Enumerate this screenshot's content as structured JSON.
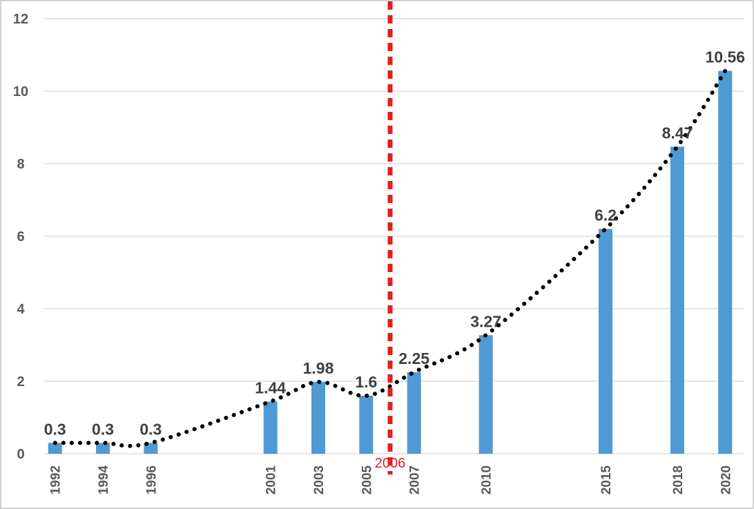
{
  "chart_data": {
    "type": "bar",
    "title": "",
    "xlabel": "",
    "ylabel": "",
    "ylim": [
      0,
      12
    ],
    "yticks": [
      0,
      2,
      4,
      6,
      8,
      10,
      12
    ],
    "grid": true,
    "legend": "none",
    "x": [
      1992,
      1994,
      1996,
      2001,
      2003,
      2005,
      2007,
      2010,
      2015,
      2018,
      2020
    ],
    "values": [
      0.3,
      0.3,
      0.3,
      1.44,
      1.98,
      1.6,
      2.25,
      3.27,
      6.2,
      8.47,
      10.56
    ],
    "data_labels": [
      "0.3",
      "0.3",
      "0.3",
      "1.44",
      "1.98",
      "1.6",
      "2.25",
      "3.27",
      "6.2",
      "8.47",
      "10.56"
    ],
    "trendline": "smoothed dotted line through bar values",
    "vertical_marker": {
      "x": 2006,
      "label": "2006",
      "color": "#e02020",
      "style": "dashed"
    },
    "colors": {
      "bar": "#4e9ad4",
      "trend": "#000000",
      "grid": "#e6e6e6",
      "axis_text": "#595959"
    }
  }
}
